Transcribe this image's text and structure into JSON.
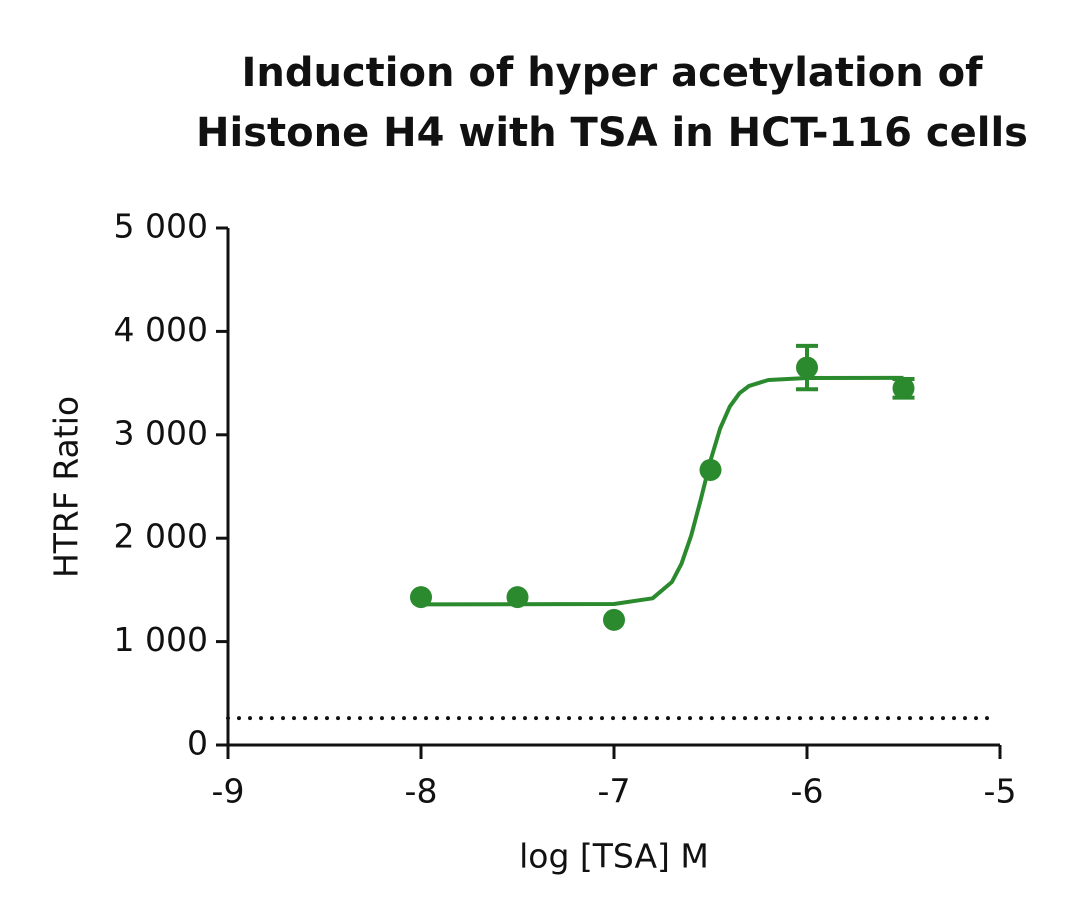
{
  "chart_data": {
    "type": "scatter",
    "title": [
      "Induction of hyper acetylation of",
      "Histone H4 with TSA in HCT-116 cells"
    ],
    "x_label": "log [TSA] M",
    "y_label": "HTRF Ratio",
    "xlim": [
      -9,
      -5
    ],
    "ylim": [
      0,
      5000
    ],
    "xticks": [
      -9,
      -8,
      -7,
      -6,
      -5
    ],
    "yticks": [
      0,
      {
        "value": 1000,
        "label": "1 000"
      },
      {
        "value": 2000,
        "label": "2 000"
      },
      {
        "value": 3000,
        "label": "3 000"
      },
      {
        "value": 4000,
        "label": "4 000"
      },
      {
        "value": 5000,
        "label": "5 000"
      }
    ],
    "series": [
      {
        "color": "#2b8a2e",
        "x": [
          -8,
          -7.5,
          -7,
          -6.5,
          -6,
          -5.5
        ],
        "values": [
          1430,
          1430,
          1210,
          2660,
          3650,
          3450
        ],
        "errors": [
          null,
          null,
          null,
          null,
          210,
          90
        ]
      }
    ],
    "fit": {
      "color": "#2b8a2e",
      "x": [
        -8,
        -7,
        -6.8,
        -6.7,
        -6.65,
        -6.6,
        -6.55,
        -6.5,
        -6.45,
        -6.4,
        -6.35,
        -6.3,
        -6.2,
        -6,
        -5.5
      ],
      "values": [
        1360,
        1364,
        1419,
        1576,
        1753,
        2026,
        2379,
        2750,
        3060,
        3273,
        3402,
        3473,
        3530,
        3549,
        3550
      ]
    },
    "reference_line": {
      "value": 260,
      "style": "dotted",
      "color": "#111111"
    }
  }
}
